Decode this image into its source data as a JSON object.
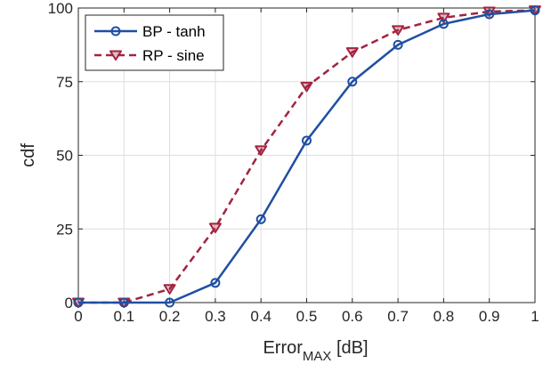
{
  "chart_data": {
    "type": "line",
    "x": [
      0,
      0.1,
      0.2,
      0.3,
      0.4,
      0.5,
      0.6,
      0.7,
      0.8,
      0.9,
      1
    ],
    "x_ticks": [
      "0",
      "0.1",
      "0.2",
      "0.3",
      "0.4",
      "0.5",
      "0.6",
      "0.7",
      "0.8",
      "0.9",
      "1"
    ],
    "y_ticks": [
      "0",
      "25",
      "50",
      "75",
      "100"
    ],
    "xlim": [
      0,
      1
    ],
    "ylim": [
      0,
      100
    ],
    "xlabel_main": "Error",
    "xlabel_sub": "MAX",
    "xlabel_unit": " [dB]",
    "ylabel": "cdf",
    "grid": true,
    "legend_position": "top-left",
    "series": [
      {
        "name": "BP - tanh",
        "color": "#1f4fa3",
        "line_style": "solid",
        "marker": "circle",
        "values": [
          0,
          0,
          0,
          6.7,
          28.3,
          55,
          75,
          87.5,
          94.6,
          97.9,
          99.2
        ]
      },
      {
        "name": "RP - sine",
        "color": "#a3233f",
        "line_style": "dashed",
        "marker": "triangle-down",
        "values": [
          0,
          0,
          4.6,
          25.4,
          51.7,
          73.3,
          85,
          92.5,
          96.7,
          98.8,
          99.2
        ]
      }
    ]
  }
}
